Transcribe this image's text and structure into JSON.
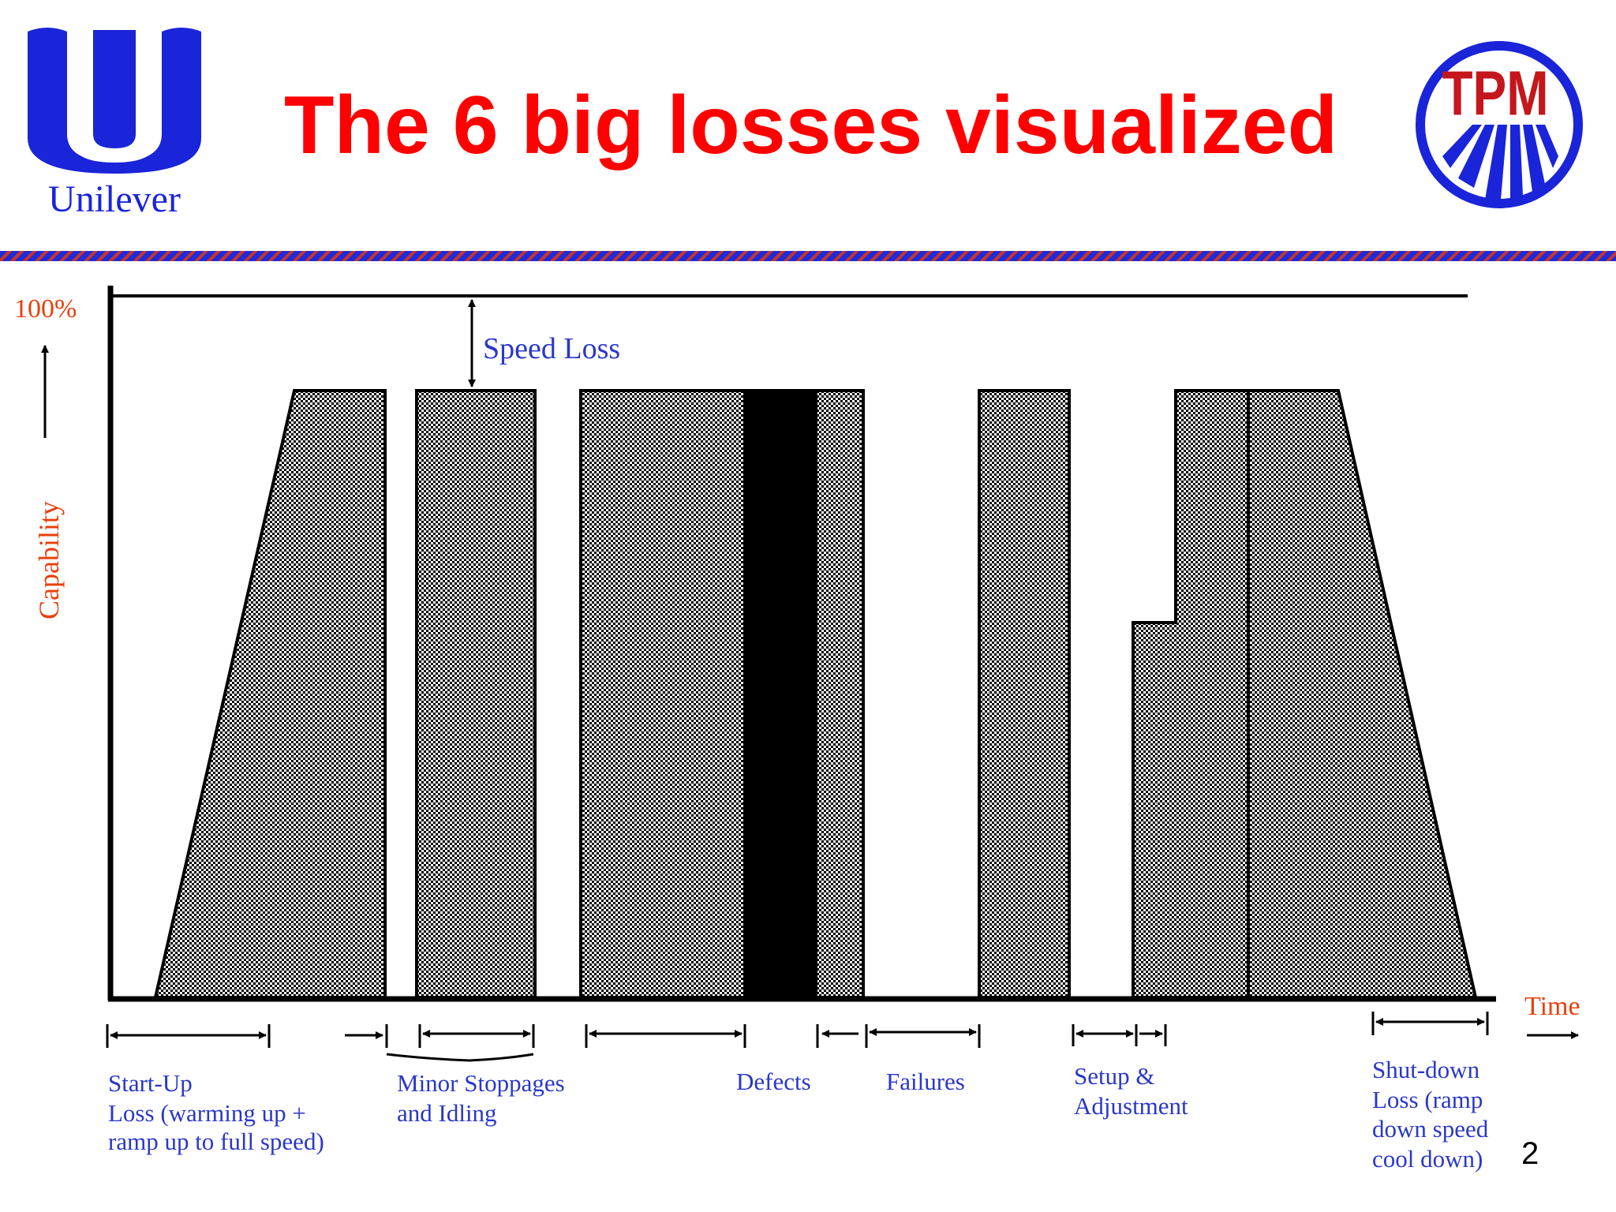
{
  "slide": {
    "title": "The 6 big losses visualized",
    "page_number": "2",
    "logos": {
      "left": {
        "icon": "unilever-logo",
        "text": "Unilever",
        "color": "#1a24d8"
      },
      "right": {
        "icon": "tpm-logo",
        "text": "TPM",
        "ring_color": "#1a24d8",
        "text_color": "#c4161c"
      }
    },
    "colors": {
      "title": "#ff0000",
      "axis_labels": "#e8400c",
      "annotations": "#2a37c8",
      "stripe_blue": "#1f2bd6",
      "stripe_red": "#c8342c"
    }
  },
  "diagram": {
    "y_max_label": "100%",
    "y_axis_label": "Capability",
    "x_axis_label": "Time",
    "speed_loss_label": "Speed Loss",
    "losses": [
      {
        "id": "startup",
        "label_lines": [
          "Start-Up",
          "Loss (warming up +",
          "ramp up to full speed)"
        ]
      },
      {
        "id": "minor",
        "label_lines": [
          "Minor Stoppages",
          "and Idling"
        ]
      },
      {
        "id": "defects",
        "label_lines": [
          "Defects"
        ]
      },
      {
        "id": "failures",
        "label_lines": [
          "Failures"
        ]
      },
      {
        "id": "setup",
        "label_lines": [
          "Setup &",
          "Adjustment"
        ]
      },
      {
        "id": "shutdown",
        "label_lines": [
          "Shut-down",
          "Loss (ramp",
          "down speed",
          "cool down)"
        ]
      }
    ]
  }
}
